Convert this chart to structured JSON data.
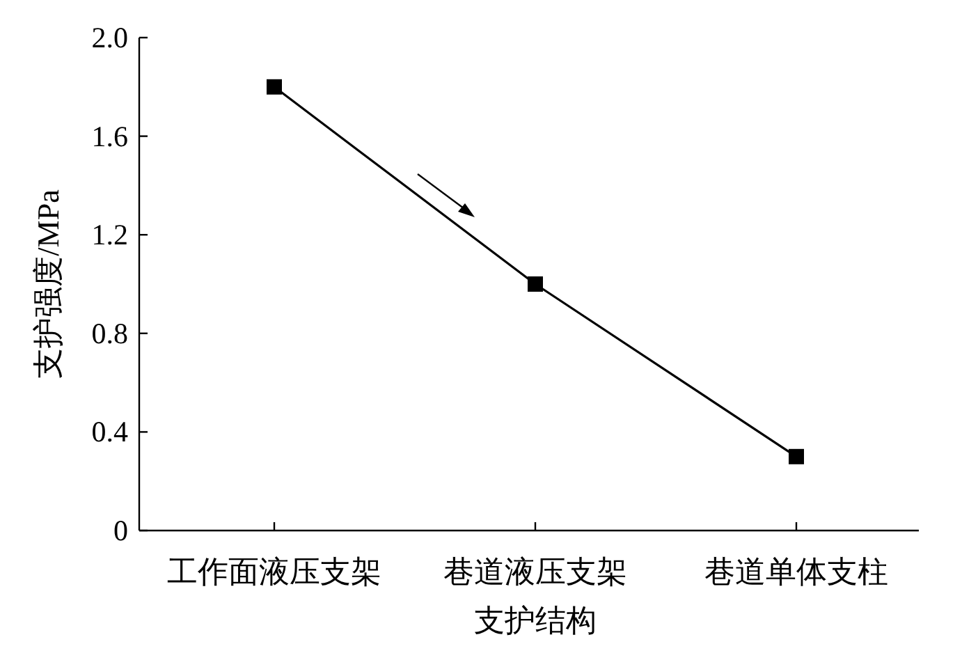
{
  "chart_data": {
    "type": "line",
    "xlabel": "支护结构",
    "ylabel": "支护强度/MPa",
    "categories": [
      "工作面液压支架",
      "巷道液压支架",
      "巷道单体支柱"
    ],
    "series": [
      {
        "color": "#000000",
        "values": [
          1.8,
          1.0,
          0.3
        ]
      }
    ],
    "ylim": [
      0,
      2
    ],
    "yticks": [
      0,
      0.4,
      0.8,
      1.2,
      1.6,
      {
        "value": 2,
        "label": "2.0"
      }
    ],
    "marker": "square",
    "line_style": "solid"
  }
}
